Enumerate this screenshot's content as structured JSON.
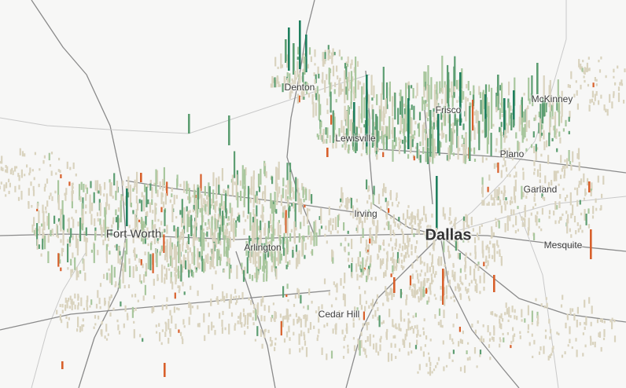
{
  "colors": {
    "background": "#f7f7f6",
    "road": "#8a8a8a",
    "road_minor": "#c9c9c9",
    "beige_bar": "#d9d3be",
    "green_light": "#a9c79e",
    "green_mid": "#5d9e72",
    "green_dark": "#1f7f5e",
    "orange": "#d8602b",
    "label_text": "#3c3c3c"
  },
  "map": {
    "cities": [
      {
        "name": "Denton",
        "size": "small"
      },
      {
        "name": "Frisco",
        "size": "small"
      },
      {
        "name": "McKinney",
        "size": "small"
      },
      {
        "name": "Lewisville",
        "size": "small"
      },
      {
        "name": "Plano",
        "size": "small"
      },
      {
        "name": "Garland",
        "size": "small"
      },
      {
        "name": "Irving",
        "size": "small"
      },
      {
        "name": "Fort Worth",
        "size": "medium"
      },
      {
        "name": "Arlington",
        "size": "small"
      },
      {
        "name": "Dallas",
        "size": "large"
      },
      {
        "name": "Mesquite",
        "size": "small"
      },
      {
        "name": "Cedar Hill",
        "size": "small"
      }
    ]
  }
}
